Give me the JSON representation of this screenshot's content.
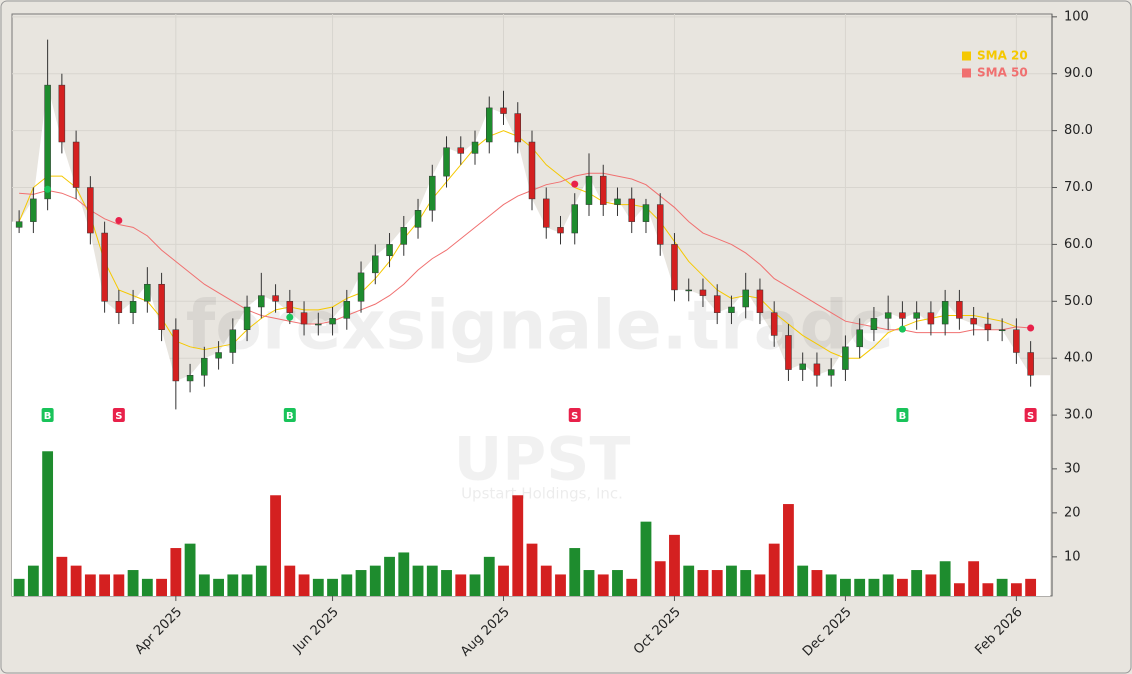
{
  "chart_data": {
    "type": "candlestick",
    "title": "UPST",
    "subtitle": "Upstart Holdings, Inc.",
    "watermark": "forexsignale.trade",
    "categories": [
      null,
      null,
      null,
      null,
      null,
      null,
      null,
      null,
      null,
      null,
      null,
      "Apr 2025",
      null,
      null,
      null,
      null,
      null,
      null,
      null,
      null,
      null,
      null,
      "Jun 2025",
      null,
      null,
      null,
      null,
      null,
      null,
      null,
      null,
      null,
      null,
      null,
      "Aug 2025",
      null,
      null,
      null,
      null,
      null,
      null,
      null,
      null,
      null,
      null,
      null,
      "Oct 2025",
      null,
      null,
      null,
      null,
      null,
      null,
      null,
      null,
      null,
      null,
      null,
      "Dec 2025",
      null,
      null,
      null,
      null,
      null,
      null,
      null,
      null,
      null,
      null,
      null,
      "Feb 2026",
      null
    ],
    "open": [
      63,
      64,
      68,
      88,
      78,
      70,
      62,
      50,
      48,
      50,
      53,
      45,
      36,
      37,
      40,
      41,
      45,
      49,
      51,
      50,
      48,
      46,
      46,
      47,
      50,
      55,
      58,
      60,
      63,
      66,
      72,
      77,
      76,
      78,
      84,
      83,
      78,
      68,
      63,
      62,
      67,
      72,
      67,
      68,
      64,
      67,
      60,
      52,
      52,
      51,
      48,
      49,
      52,
      48,
      44,
      38,
      39,
      37,
      38,
      42,
      45,
      47,
      48,
      47,
      48,
      46,
      50,
      47,
      46,
      45,
      45,
      41
    ],
    "high": [
      66,
      70,
      96,
      90,
      80,
      72,
      64,
      52,
      52,
      56,
      55,
      47,
      39,
      42,
      43,
      47,
      51,
      55,
      53,
      52,
      50,
      48,
      49,
      52,
      57,
      60,
      62,
      65,
      68,
      74,
      79,
      79,
      80,
      86,
      87,
      85,
      80,
      70,
      65,
      69,
      76,
      74,
      70,
      70,
      68,
      69,
      62,
      54,
      54,
      53,
      51,
      55,
      54,
      50,
      46,
      41,
      41,
      40,
      44,
      47,
      49,
      51,
      50,
      50,
      50,
      52,
      52,
      49,
      48,
      47,
      47,
      43
    ],
    "low": [
      62,
      62,
      66,
      76,
      68,
      60,
      48,
      46,
      46,
      48,
      43,
      31,
      34,
      35,
      38,
      39,
      43,
      47,
      48,
      46,
      44,
      44,
      44,
      45,
      48,
      53,
      56,
      58,
      61,
      64,
      70,
      74,
      74,
      76,
      81,
      76,
      66,
      61,
      60,
      60,
      65,
      65,
      65,
      62,
      62,
      58,
      50,
      50,
      49,
      46,
      46,
      47,
      46,
      42,
      36,
      36,
      35,
      35,
      36,
      40,
      43,
      45,
      45,
      45,
      44,
      44,
      45,
      44,
      43,
      43,
      39,
      35
    ],
    "close": [
      64,
      68,
      88,
      78,
      70,
      62,
      50,
      48,
      50,
      53,
      45,
      36,
      37,
      40,
      41,
      45,
      49,
      51,
      50,
      48,
      46,
      46,
      47,
      50,
      55,
      58,
      60,
      63,
      66,
      72,
      77,
      76,
      78,
      84,
      83,
      78,
      68,
      63,
      62,
      67,
      72,
      67,
      68,
      64,
      67,
      60,
      52,
      52,
      51,
      48,
      49,
      52,
      48,
      44,
      38,
      39,
      37,
      38,
      42,
      45,
      47,
      48,
      47,
      48,
      46,
      50,
      47,
      46,
      45,
      45,
      41,
      37
    ],
    "volume": [
      5,
      8,
      34,
      10,
      8,
      6,
      6,
      6,
      7,
      5,
      5,
      12,
      13,
      6,
      5,
      6,
      6,
      8,
      24,
      8,
      6,
      5,
      5,
      6,
      7,
      8,
      10,
      11,
      8,
      8,
      7,
      6,
      6,
      10,
      8,
      24,
      13,
      8,
      6,
      12,
      7,
      6,
      7,
      5,
      18,
      9,
      15,
      8,
      7,
      7,
      8,
      7,
      6,
      13,
      22,
      8,
      7,
      6,
      5,
      5,
      5,
      6,
      5,
      7,
      6,
      9,
      4,
      9,
      4,
      5,
      4,
      5
    ],
    "up_color": "#1e8c2e",
    "down_color": "#d42020",
    "series": [
      {
        "name": "SMA 20",
        "color": "#f5c800",
        "values": [
          64,
          70,
          72,
          72,
          70,
          65,
          57,
          52,
          51,
          50,
          47,
          43,
          42,
          41.5,
          42,
          42.5,
          45,
          47,
          48.5,
          49,
          48.5,
          48.5,
          49,
          50.5,
          51.5,
          54,
          57,
          61,
          64,
          68,
          71,
          74,
          77,
          79,
          80,
          79,
          77,
          74,
          72,
          70,
          69,
          67.5,
          67,
          67,
          66.5,
          64,
          60.5,
          57,
          54.5,
          52,
          50.5,
          51,
          50.5,
          48,
          46,
          44,
          42.5,
          41,
          40,
          40,
          42,
          44.5,
          45.5,
          46.5,
          47,
          47.5,
          47.5,
          47.5,
          47,
          46.5,
          45.5,
          null
        ]
      },
      {
        "name": "SMA 50",
        "color": "#f07070",
        "values": [
          69,
          68.8,
          69.5,
          69,
          68,
          66,
          64.5,
          63.5,
          63,
          61.5,
          59,
          57,
          55,
          53,
          51.5,
          50,
          48.5,
          47.5,
          47,
          46.5,
          46,
          46,
          46.5,
          47.5,
          48.5,
          49.5,
          51,
          53,
          55.5,
          57.5,
          59,
          61,
          63,
          65,
          67,
          68.5,
          69.5,
          70.5,
          71,
          72,
          72.5,
          72.5,
          72,
          71.5,
          70.5,
          68.5,
          66.5,
          64,
          62,
          61,
          60,
          58.5,
          56.5,
          54,
          52.5,
          51,
          49.5,
          48,
          46.5,
          46,
          45.5,
          45,
          45,
          44.5,
          44.5,
          44.5,
          44.5,
          45,
          45,
          45,
          45.5,
          45.3
        ]
      }
    ],
    "signals": {
      "buy_color": "#19c35a",
      "sell_color": "#e8214a",
      "labels": [
        null,
        null,
        "B",
        null,
        null,
        null,
        null,
        "S",
        null,
        null,
        null,
        null,
        null,
        null,
        null,
        null,
        null,
        null,
        null,
        "B",
        null,
        null,
        null,
        null,
        null,
        null,
        null,
        null,
        null,
        null,
        null,
        null,
        null,
        null,
        null,
        null,
        null,
        null,
        null,
        "S",
        null,
        null,
        null,
        null,
        null,
        null,
        null,
        null,
        null,
        null,
        null,
        null,
        null,
        null,
        null,
        null,
        null,
        null,
        null,
        null,
        null,
        null,
        "B",
        null,
        null,
        null,
        null,
        null,
        null,
        null,
        null,
        "S"
      ],
      "values": [
        null,
        null,
        69.7,
        null,
        null,
        null,
        null,
        64.2,
        null,
        null,
        null,
        null,
        null,
        null,
        null,
        null,
        null,
        null,
        null,
        47.2,
        null,
        null,
        null,
        null,
        null,
        null,
        null,
        null,
        null,
        null,
        null,
        null,
        null,
        null,
        null,
        null,
        null,
        null,
        null,
        70.6,
        null,
        null,
        null,
        null,
        null,
        null,
        null,
        null,
        null,
        null,
        null,
        null,
        null,
        null,
        null,
        null,
        null,
        null,
        null,
        null,
        null,
        null,
        45.1,
        null,
        null,
        null,
        null,
        null,
        null,
        null,
        null,
        45.3
      ]
    },
    "ylim": [
      -1.8,
      100.5
    ],
    "yticks": [
      {
        "value": 30,
        "label": "30.0"
      },
      {
        "value": 40,
        "label": "40.0"
      },
      {
        "value": 50,
        "label": "50.0"
      },
      {
        "value": 60,
        "label": "60.0"
      },
      {
        "value": 70,
        "label": "70.0"
      },
      {
        "value": 80,
        "label": "80.0"
      },
      {
        "value": 90,
        "label": "90.0"
      },
      100
    ],
    "y2lim": [
      1.1,
      133.4
    ],
    "y2ticks": [
      10,
      20,
      30
    ],
    "grid": true,
    "legend": "upper right"
  }
}
